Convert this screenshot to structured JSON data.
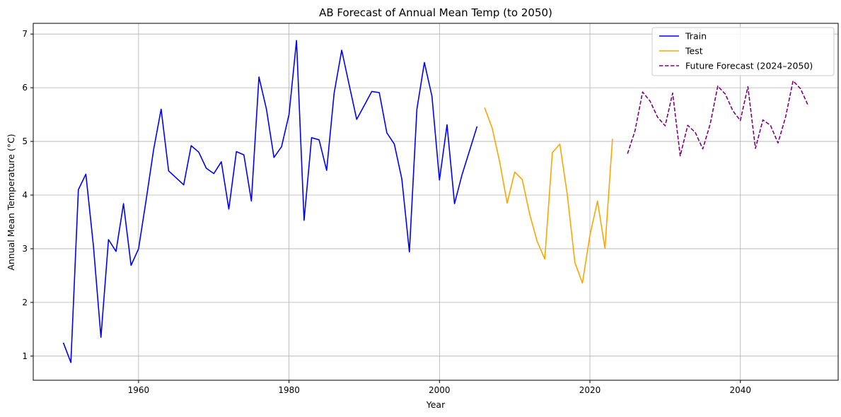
{
  "chart_data": {
    "type": "line",
    "title": "AB Forecast of Annual Mean Temp (to 2050)",
    "xlabel": "Year",
    "ylabel": "Annual Mean Temperature (°C)",
    "xlim": [
      1946,
      2053
    ],
    "ylim": [
      0.55,
      7.2
    ],
    "xticks": [
      1960,
      1980,
      2000,
      2020,
      2040
    ],
    "yticks": [
      1,
      2,
      3,
      4,
      5,
      6,
      7
    ],
    "grid": true,
    "legend_position": "top-right",
    "series": [
      {
        "name": "Train",
        "color": "#0000ff",
        "dash": "solid",
        "x": [
          1950,
          1951,
          1952,
          1953,
          1954,
          1955,
          1956,
          1957,
          1958,
          1959,
          1960,
          1961,
          1962,
          1963,
          1964,
          1965,
          1966,
          1967,
          1968,
          1969,
          1970,
          1971,
          1972,
          1973,
          1974,
          1975,
          1976,
          1977,
          1978,
          1979,
          1980,
          1981,
          1982,
          1983,
          1984,
          1985,
          1986,
          1987,
          1988,
          1989,
          1990,
          1991,
          1992,
          1993,
          1994,
          1995,
          1996,
          1997,
          1998,
          1999,
          2000,
          2001,
          2002,
          2003,
          2004,
          2005
        ],
        "y": [
          1.25,
          0.88,
          4.1,
          4.39,
          3.05,
          1.35,
          3.17,
          2.95,
          3.84,
          2.69,
          3.0,
          3.9,
          4.85,
          5.6,
          4.45,
          4.32,
          4.19,
          4.92,
          4.8,
          4.5,
          4.4,
          4.62,
          3.74,
          4.81,
          4.75,
          3.89,
          6.2,
          5.6,
          4.7,
          4.9,
          5.5,
          6.88,
          3.53,
          5.07,
          5.03,
          4.46,
          5.9,
          6.7,
          6.05,
          5.41,
          5.67,
          5.93,
          5.91,
          5.16,
          4.95,
          4.3,
          2.94,
          5.6,
          6.47,
          5.84,
          4.28,
          5.31,
          3.84,
          4.38,
          4.83,
          5.28
        ]
      },
      {
        "name": "Test",
        "color": "#ffa500",
        "dash": "solid",
        "x": [
          2006,
          2007,
          2008,
          2009,
          2010,
          2011,
          2012,
          2013,
          2014,
          2015,
          2016,
          2017,
          2018,
          2019,
          2020,
          2021,
          2022,
          2023
        ],
        "y": [
          5.63,
          5.25,
          4.62,
          3.85,
          4.43,
          4.29,
          3.64,
          3.13,
          2.81,
          4.79,
          4.95,
          4.0,
          2.74,
          2.36,
          3.25,
          3.89,
          3.01,
          5.05
        ]
      },
      {
        "name": "Future Forecast (2024–2050)",
        "color": "#800080",
        "dash": "dashed",
        "x": [
          2025,
          2026,
          2027,
          2028,
          2029,
          2030,
          2031,
          2032,
          2033,
          2034,
          2035,
          2036,
          2037,
          2038,
          2039,
          2040,
          2041,
          2042,
          2043,
          2044,
          2045,
          2046,
          2047,
          2048,
          2049
        ],
        "y": [
          4.77,
          5.2,
          5.92,
          5.75,
          5.45,
          5.29,
          5.9,
          4.73,
          5.3,
          5.17,
          4.86,
          5.33,
          6.03,
          5.88,
          5.57,
          5.39,
          6.02,
          4.87,
          5.4,
          5.3,
          4.97,
          5.45,
          6.13,
          5.98,
          5.67
        ]
      }
    ]
  }
}
